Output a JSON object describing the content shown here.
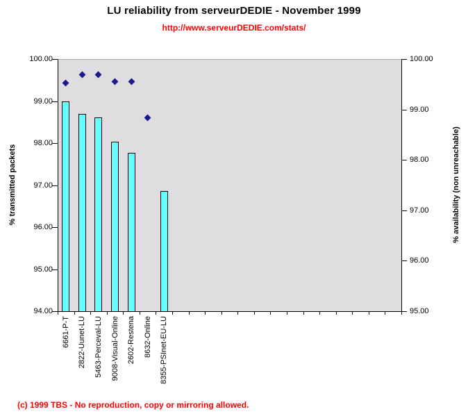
{
  "header": {
    "title": "LU reliability from serveurDEDIE - November 1999",
    "subtitle_url": "http://www.serveurDEDIE.com/stats/"
  },
  "footer": {
    "copyright": "(c) 1999 TBS - No reproduction, copy or mirroring allowed."
  },
  "colors": {
    "bar_fill": "#66ffff",
    "marker_navy": "#1a1a8c",
    "plot_background": "#e0dde0",
    "accent_red": "#ff0000",
    "axis_line": "#000000"
  },
  "chart_data": {
    "type": "bar",
    "title": "LU reliability from serveurDEDIE - November 1999",
    "subtitle": "http://www.serveurDEDIE.com/stats/",
    "categories": [
      "6661-P-T",
      "2822-Uunet-LU",
      "5463-Perceval-LU",
      "9008-Visual-Online",
      "2602-Restena",
      "8632-Online",
      "8355-PSInet-EU-LU"
    ],
    "series": [
      {
        "name": "% transmitted packets",
        "type": "bar",
        "axis": "left",
        "color": "#66ffff",
        "values": [
          99.0,
          98.7,
          98.61,
          98.03,
          97.77,
          null,
          96.86
        ]
      },
      {
        "name": "% availability (non unreachable)",
        "type": "scatter",
        "marker": "diamond",
        "axis": "right",
        "color": "#1a1a8c",
        "values": [
          99.52,
          99.69,
          99.69,
          99.55,
          99.55,
          98.84,
          null
        ]
      }
    ],
    "left_axis": {
      "label": "% transmitted packets",
      "min": 94,
      "max": 100,
      "step": 1,
      "tick_format": "0.00"
    },
    "right_axis": {
      "label": "% availability (non unreachable)",
      "min": 95,
      "max": 100,
      "step": 1,
      "tick_format": "0.00"
    },
    "x_axis": {
      "total_slots": 21,
      "labeled_categories": 7
    },
    "grid": false,
    "legend_position": "none",
    "plot_bg": "#e0dde0"
  }
}
